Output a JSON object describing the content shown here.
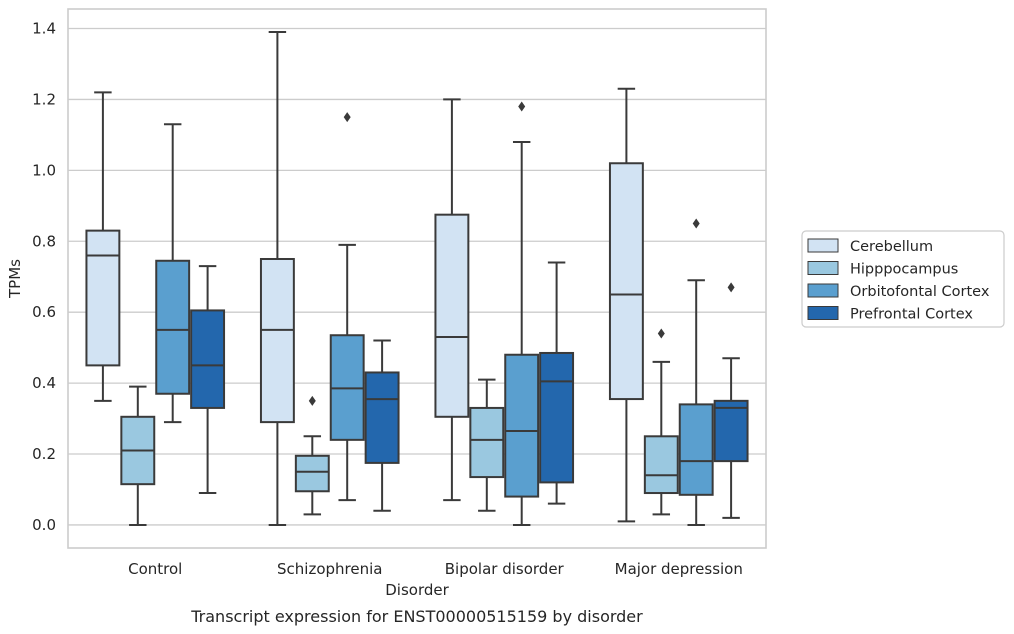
{
  "chart_data": {
    "type": "box",
    "xlabel": "Disorder",
    "ylabel": "TPMs",
    "caption": "Transcript expression for ENST00000515159 by disorder",
    "ylim": [
      -0.065,
      1.455
    ],
    "yticks": [
      "0.0",
      "0.2",
      "0.4",
      "0.6",
      "0.8",
      "1.0",
      "1.2",
      "1.4"
    ],
    "ytick_values": [
      0,
      0.2,
      0.4,
      0.6,
      0.8,
      1.0,
      1.2,
      1.4
    ],
    "grid": true,
    "legend_position": "right",
    "categories": [
      "Control",
      "Schizophrenia",
      "Bipolar disorder",
      "Major depression"
    ],
    "series": [
      {
        "name": "Cerebellum",
        "color": "#d2e3f3",
        "boxes": [
          {
            "whislo": 0.35,
            "q1": 0.45,
            "med": 0.76,
            "q3": 0.83,
            "whishi": 1.22,
            "fliers": []
          },
          {
            "whislo": 0.0,
            "q1": 0.29,
            "med": 0.55,
            "q3": 0.75,
            "whishi": 1.39,
            "fliers": []
          },
          {
            "whislo": 0.07,
            "q1": 0.305,
            "med": 0.53,
            "q3": 0.875,
            "whishi": 1.2,
            "fliers": []
          },
          {
            "whislo": 0.01,
            "q1": 0.355,
            "med": 0.65,
            "q3": 1.02,
            "whishi": 1.23,
            "fliers": []
          }
        ]
      },
      {
        "name": "Hipppocampus",
        "color": "#9ac8e0",
        "boxes": [
          {
            "whislo": 0.0,
            "q1": 0.115,
            "med": 0.21,
            "q3": 0.305,
            "whishi": 0.39,
            "fliers": []
          },
          {
            "whislo": 0.03,
            "q1": 0.095,
            "med": 0.15,
            "q3": 0.195,
            "whishi": 0.25,
            "fliers": [
              0.35
            ]
          },
          {
            "whislo": 0.04,
            "q1": 0.135,
            "med": 0.24,
            "q3": 0.33,
            "whishi": 0.41,
            "fliers": []
          },
          {
            "whislo": 0.03,
            "q1": 0.09,
            "med": 0.14,
            "q3": 0.25,
            "whishi": 0.46,
            "fliers": [
              0.54
            ]
          }
        ]
      },
      {
        "name": "Orbitofontal Cortex",
        "color": "#5a9fcf",
        "boxes": [
          {
            "whislo": 0.29,
            "q1": 0.37,
            "med": 0.55,
            "q3": 0.745,
            "whishi": 1.13,
            "fliers": []
          },
          {
            "whislo": 0.07,
            "q1": 0.24,
            "med": 0.385,
            "q3": 0.535,
            "whishi": 0.79,
            "fliers": [
              1.15
            ]
          },
          {
            "whislo": 0.0,
            "q1": 0.08,
            "med": 0.265,
            "q3": 0.48,
            "whishi": 1.08,
            "fliers": [
              1.18
            ]
          },
          {
            "whislo": 0.0,
            "q1": 0.085,
            "med": 0.18,
            "q3": 0.34,
            "whishi": 0.69,
            "fliers": [
              0.85
            ]
          }
        ]
      },
      {
        "name": "Prefrontal Cortex",
        "color": "#2367ad",
        "boxes": [
          {
            "whislo": 0.09,
            "q1": 0.33,
            "med": 0.45,
            "q3": 0.605,
            "whishi": 0.73,
            "fliers": []
          },
          {
            "whislo": 0.04,
            "q1": 0.175,
            "med": 0.355,
            "q3": 0.43,
            "whishi": 0.52,
            "fliers": []
          },
          {
            "whislo": 0.06,
            "q1": 0.12,
            "med": 0.405,
            "q3": 0.485,
            "whishi": 0.74,
            "fliers": []
          },
          {
            "whislo": 0.02,
            "q1": 0.18,
            "med": 0.33,
            "q3": 0.35,
            "whishi": 0.47,
            "fliers": [
              0.67
            ]
          }
        ]
      }
    ]
  },
  "style": {
    "line_color": "#3a3a3a",
    "grid_color": "#cccccc",
    "frame_color": "#cccccc",
    "text_color": "#262626"
  }
}
